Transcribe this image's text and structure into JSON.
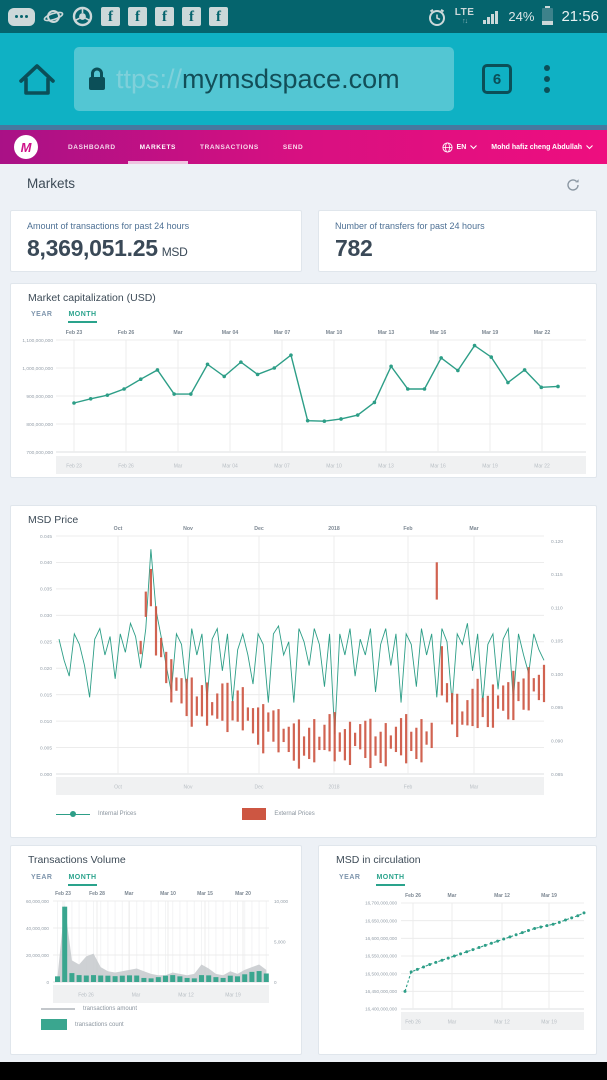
{
  "status_bar": {
    "time": "21:56",
    "battery": "24%",
    "network": "LTE",
    "icons": [
      "notifications-overflow",
      "planet",
      "chrome",
      "facebook",
      "facebook",
      "facebook",
      "facebook",
      "facebook",
      "alarm",
      "lte-data",
      "signal-bars",
      "battery"
    ]
  },
  "browser": {
    "url_scheme": "ttps://",
    "url_host": "mymsdspace.com",
    "tab_count": "6"
  },
  "nav": {
    "brand_letter": "M",
    "items": [
      {
        "label": "DASHBOARD",
        "active": false
      },
      {
        "label": "MARKETS",
        "active": true
      },
      {
        "label": "TRANSACTIONS",
        "active": false
      },
      {
        "label": "SEND",
        "active": false
      }
    ],
    "language": "EN",
    "user": "Mohd hafiz cheng Abdullah"
  },
  "page": {
    "title": "Markets"
  },
  "cards": [
    {
      "label": "Amount of transactions for past 24 hours",
      "value": "8,369,051.25",
      "unit": "MSD"
    },
    {
      "label": "Number of transfers for past 24 hours",
      "value": "782",
      "unit": ""
    }
  ],
  "colors": {
    "accent_teal": "#2aa38c",
    "line_green": "#2d9e87",
    "series_red": "#cd5642",
    "area_gray": "#c5c9cd",
    "nav_pink": "#d81081",
    "browser_cyan": "#0fb1c4",
    "status_teal": "#05646d"
  },
  "chart_data": [
    {
      "id": "market_cap",
      "type": "line",
      "title": "Market capitalization (USD)",
      "tabs": [
        "YEAR",
        "MONTH"
      ],
      "active_tab": "MONTH",
      "x_labels": [
        "Feb 23",
        "Feb 26",
        "Mar",
        "Mar 04",
        "Mar 07",
        "Mar 10",
        "Mar 13",
        "Mar 16",
        "Mar 19",
        "Mar 22"
      ],
      "y_ticks": [
        "1,100,000,000",
        "1,000,000,000",
        "900,000,000",
        "800,000,000",
        "700,000,000"
      ],
      "ylim_millions": [
        700,
        1100
      ],
      "values_millions": [
        875,
        890,
        903,
        925,
        960,
        993,
        907,
        907,
        1013,
        970,
        1021,
        977,
        1000,
        1046,
        812,
        810,
        818,
        832,
        877,
        1006,
        925,
        925,
        1036,
        991,
        1080,
        1039,
        948,
        993,
        931,
        934
      ],
      "line_color": "#2d9e87"
    },
    {
      "id": "msd_price",
      "type": "line+candle",
      "title": "MSD Price",
      "x_labels": [
        "Oct",
        "Nov",
        "Dec",
        "2018",
        "Feb",
        "Mar"
      ],
      "left_ticks": [
        "0.045",
        "0.040",
        "0.035",
        "0.030",
        "0.025",
        "0.020",
        "0.015",
        "0.010",
        "0.005",
        "0.000"
      ],
      "right_ticks": [
        "0.120",
        "0.115",
        "0.110",
        "0.105",
        "0.100",
        "0.095",
        "0.090",
        "0.085"
      ],
      "left_range": [
        0,
        0.045
      ],
      "right_range": [
        0.085,
        0.12
      ],
      "series": [
        {
          "name": "Internal Prices",
          "axis": "left",
          "color": "#2d9e87",
          "values": [
            0.0255,
            0.0215,
            0.0185,
            0.0265,
            0.0245,
            0.0205,
            0.0145,
            0.0255,
            0.0275,
            0.0225,
            0.026,
            0.018,
            0.0265,
            0.023,
            0.0285,
            0.026,
            0.02,
            0.0275,
            0.0425,
            0.031,
            0.026,
            0.0205,
            0.0155,
            0.0265,
            0.0245,
            0.016,
            0.0275,
            0.0225,
            0.0265,
            0.014,
            0.0255,
            0.0275,
            0.0195,
            0.0265,
            0.0135,
            0.0235,
            0.0265,
            0.0225,
            0.017,
            0.0265,
            0.0245,
            0.0135,
            0.0265,
            0.028,
            0.0225,
            0.025,
            0.0135,
            0.0275,
            0.025,
            0.0205,
            0.0275,
            0.0245,
            0.0165,
            0.0265,
            0.0075,
            0.0265,
            0.0225,
            0.0275,
            0.0185,
            0.0255,
            0.0225,
            0.0275,
            0.0155,
            0.0245,
            0.0275,
            0.0205,
            0.0265,
            0.0135,
            0.0265,
            0.0245,
            0.0165,
            0.0275,
            0.0225,
            0.0265,
            0.0145,
            0.0275,
            0.025,
            0.0135,
            0.0265,
            0.0245,
            0.0285,
            0.0195,
            0.0265,
            0.0135,
            0.0245,
            0.0265,
            0.016,
            0.0255,
            0.0275,
            0.014,
            0.0265,
            0.0225,
            0.019,
            0.0265,
            0.0235,
            0.0215
          ]
        },
        {
          "name": "External Prices",
          "axis": "right",
          "color": "#cd5642",
          "start_index": 16,
          "values": [
            0.104,
            0.1105,
            0.113,
            0.1065,
            0.104,
            0.101,
            0.099,
            0.0985,
            0.0975,
            0.0965,
            0.0958,
            0.0952,
            0.096,
            0.0955,
            0.0948,
            0.0952,
            0.0958,
            0.095,
            0.0945,
            0.0952,
            0.0948,
            0.094,
            0.093,
            0.0922,
            0.0918,
            0.0928,
            0.0922,
            0.0915,
            0.0908,
            0.0902,
            0.0898,
            0.0895,
            0.0892,
            0.0896,
            0.09,
            0.0896,
            0.0905,
            0.0912,
            0.0906,
            0.0898,
            0.0894,
            0.0896,
            0.0902,
            0.0906,
            0.0902,
            0.0896,
            0.0892,
            0.089,
            0.0894,
            0.0898,
            0.0902,
            0.0906,
            0.0903,
            0.0899,
            0.0896,
            0.09,
            0.0904,
            0.0908,
            0.114,
            0.1005,
            0.0972,
            0.0948,
            0.0938,
            0.0934,
            0.0942,
            0.095,
            0.0956,
            0.095,
            0.0944,
            0.0952,
            0.0958,
            0.0964,
            0.096,
            0.0968,
            0.0974,
            0.097,
            0.0978,
            0.0984,
            0.098,
            0.0986
          ]
        }
      ]
    },
    {
      "id": "transactions_volume",
      "type": "bar+area",
      "title": "Transactions Volume",
      "tabs": [
        "YEAR",
        "MONTH"
      ],
      "active_tab": "MONTH",
      "x_labels_top": [
        "Feb 23",
        "Feb 28",
        "Mar",
        "Mar 10",
        "Mar 15",
        "Mar 20"
      ],
      "x_labels_bottom": [
        "Feb 26",
        "Mar",
        "Mar 12",
        "Mar 19"
      ],
      "left_ticks": [
        "60,000,000",
        "40,000,000",
        "20,000,000",
        "0"
      ],
      "right_ticks": [
        "10,000",
        "5,000",
        "0"
      ],
      "left_range_millions": [
        0,
        60
      ],
      "right_range": [
        0,
        10000
      ],
      "series": [
        {
          "name": "transactions amount",
          "type": "area",
          "axis": "left",
          "color": "#c5c9cd",
          "values_millions": [
            4,
            57,
            16,
            13,
            19,
            21,
            11,
            8,
            7,
            8,
            9,
            10,
            8,
            6,
            5,
            5,
            7,
            6,
            5,
            6,
            13,
            10,
            6,
            5,
            8,
            6,
            9,
            11,
            13,
            9
          ]
        },
        {
          "name": "transactions count",
          "type": "bar",
          "axis": "right",
          "color": "#3aa68f",
          "values": [
            700,
            9300,
            1100,
            850,
            800,
            850,
            800,
            780,
            720,
            780,
            820,
            800,
            500,
            450,
            600,
            780,
            850,
            700,
            500,
            450,
            850,
            820,
            600,
            500,
            780,
            700,
            950,
            1250,
            1350,
            1050
          ]
        }
      ]
    },
    {
      "id": "msd_in_circulation",
      "type": "line",
      "title": "MSD in circulation",
      "tabs": [
        "YEAR",
        "MONTH"
      ],
      "active_tab": "MONTH",
      "x_labels": [
        "Feb 26",
        "Mar",
        "Mar 12",
        "Mar 19"
      ],
      "y_ticks": [
        "16,700,000,000",
        "16,650,000,000",
        "16,600,000,000",
        "16,550,000,000",
        "16,500,000,000",
        "16,450,000,000",
        "16,400,000,000"
      ],
      "ylim_millions": [
        16400,
        16700
      ],
      "values_millions": [
        16450,
        16505,
        16512,
        16519,
        16526,
        16532,
        16538,
        16544,
        16550,
        16556,
        16562,
        16568,
        16574,
        16580,
        16586,
        16592,
        16598,
        16604,
        16610,
        16616,
        16622,
        16628,
        16632,
        16636,
        16640,
        16645,
        16652,
        16658,
        16664,
        16672
      ],
      "line_color": "#2d9e87",
      "dashed": true
    }
  ]
}
